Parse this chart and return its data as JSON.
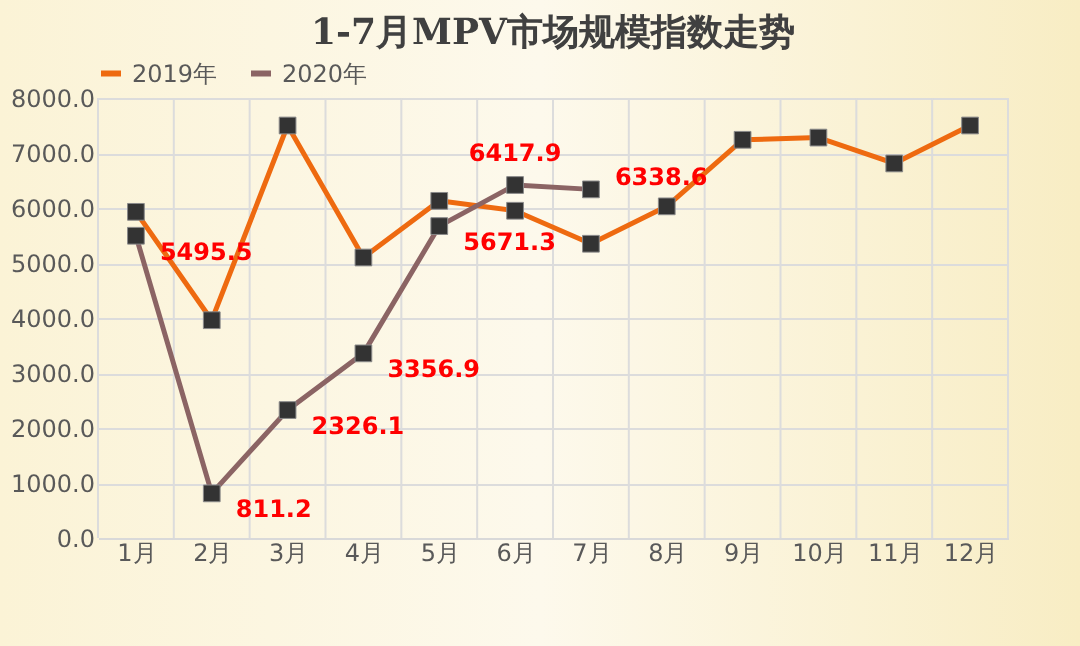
{
  "chart_data": {
    "type": "line",
    "title": "1-7月MPV市场规模指数走势",
    "categories": [
      "1月",
      "2月",
      "3月",
      "4月",
      "5月",
      "6月",
      "7月",
      "8月",
      "9月",
      "10月",
      "11月",
      "12月"
    ],
    "series": [
      {
        "name": "2019年",
        "color": "#ee6a10",
        "values": [
          5930,
          3960,
          7500,
          5100,
          6130,
          5950,
          5350,
          6030,
          7240,
          7280,
          6810,
          7500
        ]
      },
      {
        "name": "2020年",
        "color": "#8b6464",
        "values": [
          5495.5,
          811.2,
          2326.1,
          3356.9,
          5671.3,
          6417.9,
          6338.6,
          null,
          null,
          null,
          null,
          null
        ],
        "value_labels": [
          "5495.5",
          "811.2",
          "2326.1",
          "3356.9",
          "5671.3",
          "6417.9",
          "6338.6",
          null,
          null,
          null,
          null,
          null
        ]
      }
    ],
    "ylim": [
      0,
      8000
    ],
    "yticks": [
      {
        "value": 0,
        "label": "0.0"
      },
      {
        "value": 1000,
        "label": "1000.0"
      },
      {
        "value": 2000,
        "label": "2000.0"
      },
      {
        "value": 3000,
        "label": "3000.0"
      },
      {
        "value": 4000,
        "label": "4000.0"
      },
      {
        "value": 5000,
        "label": "5000.0"
      },
      {
        "value": 6000,
        "label": "6000.0"
      },
      {
        "value": 7000,
        "label": "7000.0"
      },
      {
        "value": 8000,
        "label": "8000.0"
      }
    ],
    "grid": true,
    "legend": "top",
    "marker": "square",
    "line_style": "solid"
  }
}
